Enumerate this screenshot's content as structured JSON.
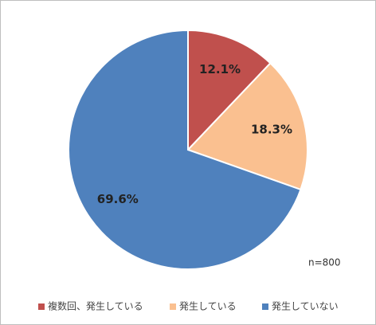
{
  "chart_data": {
    "type": "pie",
    "categories": [
      "複数回、発生している",
      "発生している",
      "発生していない"
    ],
    "values": [
      12.1,
      18.3,
      69.6
    ],
    "value_labels": [
      "12.1%",
      "18.3%",
      "69.6%"
    ],
    "colors": [
      "#c0504d",
      "#fac090",
      "#4f81bd"
    ],
    "annotation": "n=800",
    "legend": "bottom"
  }
}
